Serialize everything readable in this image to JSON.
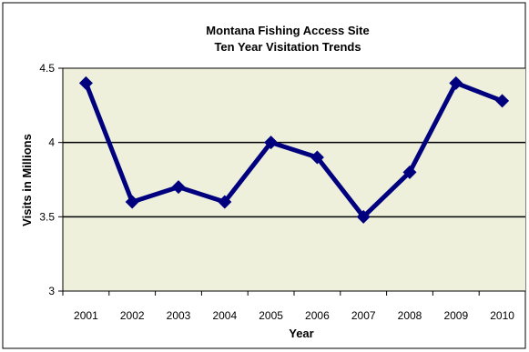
{
  "chart_data": {
    "type": "line",
    "title": "Montana Fishing Access Site",
    "subtitle": "Ten Year Visitation Trends",
    "xlabel": "Year",
    "ylabel": "Visits in Millions",
    "categories": [
      "2001",
      "2002",
      "2003",
      "2004",
      "2005",
      "2006",
      "2007",
      "2008",
      "2009",
      "2010"
    ],
    "series": [
      {
        "values": [
          4.4,
          3.6,
          3.7,
          3.6,
          4.0,
          3.9,
          3.5,
          3.8,
          4.4,
          4.28
        ]
      }
    ],
    "ylim": [
      3,
      4.5
    ],
    "yticks": [
      "3",
      "3.5",
      "4",
      "4.5"
    ],
    "grid": "horizontal at 3.5 and 4",
    "legend": "none",
    "colors": {
      "line": "#00007f",
      "plot_background": "#eef0dc",
      "gridline": "#000000",
      "border": "#000000"
    }
  }
}
